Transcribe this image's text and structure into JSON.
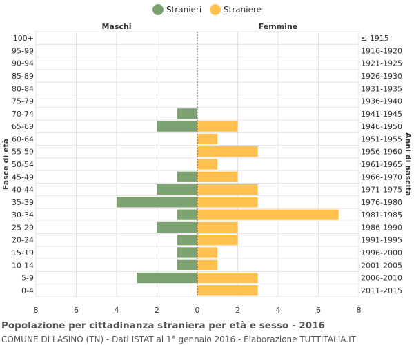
{
  "chart_data": {
    "type": "bar",
    "orientation": "horizontal-population-pyramid",
    "title": "Popolazione per cittadinanza straniera per età e sesso - 2016",
    "subtitle": "COMUNE DI LASINO (TN) - Dati ISTAT al 1° gennaio 2016 - Elaborazione TUTTITALIA.IT",
    "left_header": "Maschi",
    "right_header": "Femmine",
    "ylabel_left": "Fasce di età",
    "ylabel_right": "Anni di nascita",
    "xlim": [
      -8,
      8
    ],
    "x_ticks": [
      -8,
      -6,
      -4,
      -2,
      0,
      2,
      4,
      6,
      8
    ],
    "x_tick_labels": [
      "8",
      "6",
      "4",
      "2",
      "0",
      "2",
      "4",
      "6",
      "8"
    ],
    "grid": true,
    "legend_position": "top-center",
    "categories": [
      "100+",
      "95-99",
      "90-94",
      "85-89",
      "80-84",
      "75-79",
      "70-74",
      "65-69",
      "60-64",
      "55-59",
      "50-54",
      "45-49",
      "40-44",
      "35-39",
      "30-34",
      "25-29",
      "20-24",
      "15-19",
      "10-14",
      "5-9",
      "0-4"
    ],
    "birth_years": [
      "≤ 1915",
      "1916-1920",
      "1921-1925",
      "1926-1930",
      "1931-1935",
      "1936-1940",
      "1941-1945",
      "1946-1950",
      "1951-1955",
      "1956-1960",
      "1961-1965",
      "1966-1970",
      "1971-1975",
      "1976-1980",
      "1981-1985",
      "1986-1990",
      "1991-1995",
      "1996-2000",
      "2001-2005",
      "2006-2010",
      "2011-2015"
    ],
    "series": [
      {
        "name": "Stranieri",
        "side": "left",
        "color": "#7da271",
        "values": [
          0,
          0,
          0,
          0,
          0,
          0,
          1,
          2,
          0,
          0,
          0,
          1,
          2,
          4,
          1,
          2,
          1,
          1,
          1,
          3,
          0
        ]
      },
      {
        "name": "Straniere",
        "side": "right",
        "color": "#ffc04d",
        "values": [
          0,
          0,
          0,
          0,
          0,
          0,
          0,
          2,
          1,
          3,
          1,
          2,
          3,
          3,
          7,
          2,
          2,
          1,
          1,
          3,
          3
        ]
      }
    ]
  }
}
